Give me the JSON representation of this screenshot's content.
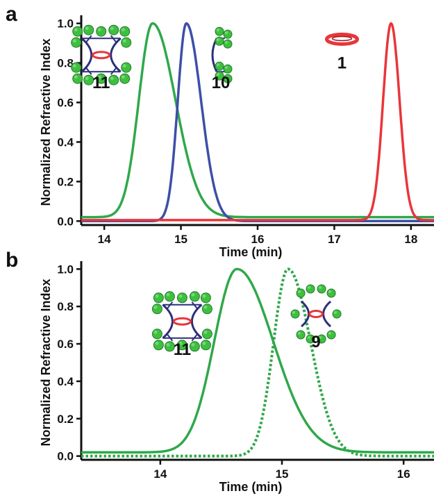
{
  "colors": {
    "green": "#2fa84a",
    "blue": "#3d4fa8",
    "red": "#e8363a",
    "linker": "#2b2f7a",
    "bead": "#3fbf3f"
  },
  "chart_data": [
    {
      "panel": "a",
      "type": "line",
      "xlabel": "Time (min)",
      "ylabel": "Normalized Refractive Index",
      "xlim": [
        13.7,
        18.3
      ],
      "ylim": [
        -0.02,
        1.02
      ],
      "xticks": [
        "14",
        "15",
        "16",
        "17",
        "18"
      ],
      "yticks": [
        "0.0",
        "0.2",
        "0.4",
        "0.6",
        "0.8",
        "1.0"
      ],
      "series": [
        {
          "name": "11",
          "color": "green",
          "style": "solid",
          "peak": 14.63,
          "width_left": 0.24,
          "width_right": 0.4,
          "baseline": 0.02
        },
        {
          "name": "10",
          "color": "blue",
          "style": "solid",
          "peak": 15.07,
          "width_left": 0.15,
          "width_right": 0.26,
          "baseline": 0.0
        },
        {
          "name": "1",
          "color": "red",
          "style": "solid",
          "peak": 17.74,
          "width_left": 0.14,
          "width_right": 0.15,
          "baseline": 0.005
        }
      ],
      "annotations": [
        {
          "label": "11",
          "icon": "dendrimer-ring-complex-icon",
          "x": 13.96,
          "y": 0.84
        },
        {
          "label": "10",
          "icon": "dendrimer-linker-icon",
          "x": 15.52,
          "y": 0.84
        },
        {
          "label": "1",
          "icon": "red-ring-icon",
          "x": 17.1,
          "y": 0.92
        }
      ]
    },
    {
      "panel": "b",
      "type": "line",
      "xlabel": "Time (min)",
      "ylabel": "Normalized Refractive Index",
      "xlim": [
        13.35,
        16.25
      ],
      "ylim": [
        -0.02,
        1.02
      ],
      "xticks": [
        "14",
        "15",
        "16"
      ],
      "yticks": [
        "0.0",
        "0.2",
        "0.4",
        "0.6",
        "0.8",
        "1.0"
      ],
      "series": [
        {
          "name": "11",
          "color": "green",
          "style": "solid",
          "peak": 14.63,
          "width_left": 0.25,
          "width_right": 0.4,
          "baseline": 0.02
        },
        {
          "name": "9",
          "color": "green",
          "style": "dotted",
          "peak": 15.05,
          "width_left": 0.16,
          "width_right": 0.25,
          "baseline": 0.0
        }
      ],
      "annotations": [
        {
          "label": "11",
          "icon": "dendrimer-ring-complex-icon",
          "x": 14.18,
          "y": 0.72
        },
        {
          "label": "9",
          "icon": "dendrimer-ring-small-icon",
          "x": 15.28,
          "y": 0.76
        }
      ]
    }
  ]
}
